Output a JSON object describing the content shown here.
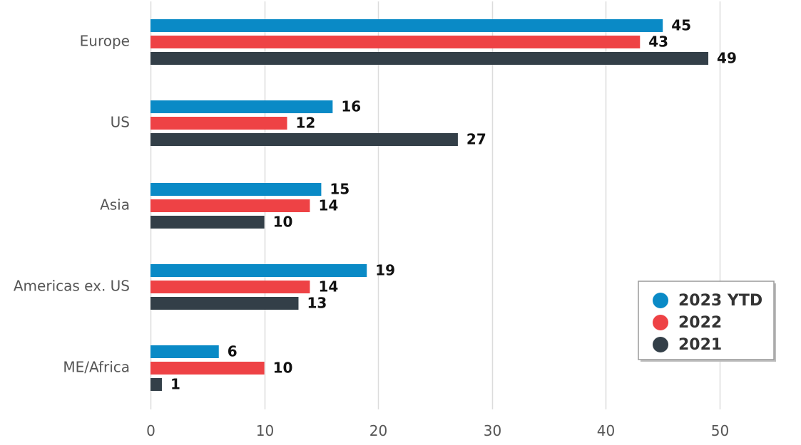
{
  "chart_data": {
    "type": "bar",
    "orientation": "horizontal",
    "categories": [
      "Europe",
      "US",
      "Asia",
      "Americas ex. US",
      "ME/Africa"
    ],
    "series": [
      {
        "name": "2023 YTD",
        "color": "#0a8ac6",
        "values": [
          45,
          16,
          15,
          19,
          6
        ]
      },
      {
        "name": "2022",
        "color": "#ee4245",
        "values": [
          43,
          12,
          14,
          14,
          10
        ]
      },
      {
        "name": "2021",
        "color": "#333f48",
        "values": [
          49,
          27,
          10,
          13,
          1
        ]
      }
    ],
    "xlim": [
      0,
      50
    ],
    "xticks": [
      0,
      10,
      20,
      30,
      40,
      50
    ],
    "grid": "vertical",
    "legend": "bottom-right",
    "data_labels": true
  }
}
